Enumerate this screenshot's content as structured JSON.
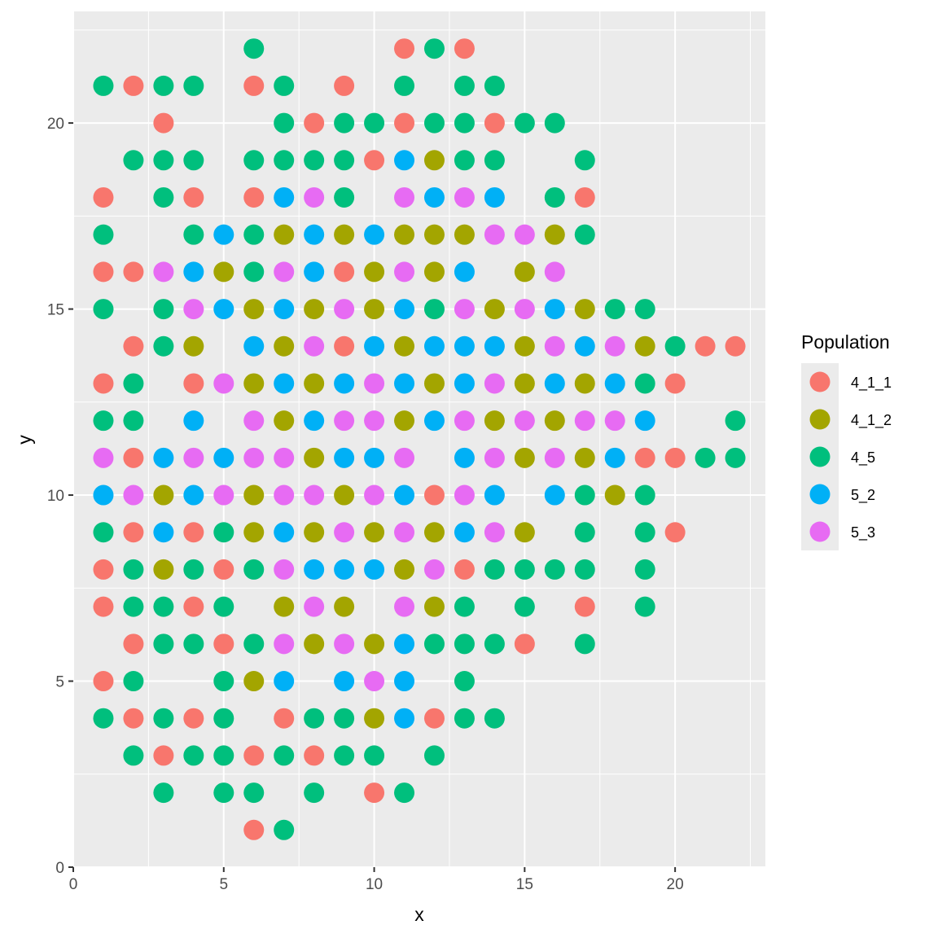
{
  "chart_data": {
    "type": "scatter",
    "title": "",
    "xlabel": "x",
    "ylabel": "y",
    "xlim": [
      0,
      23
    ],
    "ylim": [
      0,
      23
    ],
    "x_ticks": [
      0,
      5,
      10,
      15,
      20
    ],
    "y_ticks": [
      0,
      5,
      10,
      15,
      20
    ],
    "x_tick_labels": [
      "0",
      "5",
      "10",
      "15",
      "20"
    ],
    "y_tick_labels": [
      "0",
      "5",
      "10",
      "15",
      "20"
    ],
    "grid": true,
    "legend": {
      "title": "Population",
      "position": "right",
      "entries": [
        {
          "label": "4_1_1",
          "color": "#F8766D"
        },
        {
          "label": "4_1_2",
          "color": "#A3A500"
        },
        {
          "label": "4_5",
          "color": "#00BF7D"
        },
        {
          "label": "5_2",
          "color": "#00B0F6"
        },
        {
          "label": "5_3",
          "color": "#E76BF3"
        }
      ]
    },
    "series": [
      {
        "name": "4_1_1",
        "color": "#F8766D",
        "points": [
          [
            11,
            22
          ],
          [
            13,
            22
          ],
          [
            2,
            21
          ],
          [
            6,
            21
          ],
          [
            9,
            21
          ],
          [
            3,
            20
          ],
          [
            8,
            20
          ],
          [
            11,
            20
          ],
          [
            14,
            20
          ],
          [
            10,
            19
          ],
          [
            1,
            18
          ],
          [
            4,
            18
          ],
          [
            6,
            18
          ],
          [
            17,
            18
          ],
          [
            1,
            16
          ],
          [
            2,
            16
          ],
          [
            9,
            16
          ],
          [
            2,
            14
          ],
          [
            9,
            14
          ],
          [
            21,
            14
          ],
          [
            22,
            14
          ],
          [
            1,
            13
          ],
          [
            4,
            13
          ],
          [
            20,
            13
          ],
          [
            2,
            11
          ],
          [
            19,
            11
          ],
          [
            20,
            11
          ],
          [
            12,
            10
          ],
          [
            2,
            9
          ],
          [
            4,
            9
          ],
          [
            20,
            9
          ],
          [
            1,
            8
          ],
          [
            5,
            8
          ],
          [
            13,
            8
          ],
          [
            1,
            7
          ],
          [
            4,
            7
          ],
          [
            17,
            7
          ],
          [
            2,
            6
          ],
          [
            5,
            6
          ],
          [
            15,
            6
          ],
          [
            1,
            5
          ],
          [
            2,
            4
          ],
          [
            4,
            4
          ],
          [
            7,
            4
          ],
          [
            12,
            4
          ],
          [
            3,
            3
          ],
          [
            6,
            3
          ],
          [
            8,
            3
          ],
          [
            10,
            2
          ],
          [
            6,
            1
          ]
        ]
      },
      {
        "name": "4_1_2",
        "color": "#A3A500",
        "points": [
          [
            12,
            19
          ],
          [
            7,
            17
          ],
          [
            9,
            17
          ],
          [
            11,
            17
          ],
          [
            12,
            17
          ],
          [
            13,
            17
          ],
          [
            16,
            17
          ],
          [
            5,
            16
          ],
          [
            10,
            16
          ],
          [
            12,
            16
          ],
          [
            15,
            16
          ],
          [
            6,
            15
          ],
          [
            8,
            15
          ],
          [
            10,
            15
          ],
          [
            14,
            15
          ],
          [
            17,
            15
          ],
          [
            4,
            14
          ],
          [
            7,
            14
          ],
          [
            11,
            14
          ],
          [
            15,
            14
          ],
          [
            19,
            14
          ],
          [
            6,
            13
          ],
          [
            8,
            13
          ],
          [
            12,
            13
          ],
          [
            15,
            13
          ],
          [
            17,
            13
          ],
          [
            7,
            12
          ],
          [
            11,
            12
          ],
          [
            14,
            12
          ],
          [
            16,
            12
          ],
          [
            8,
            11
          ],
          [
            15,
            11
          ],
          [
            17,
            11
          ],
          [
            3,
            10
          ],
          [
            6,
            10
          ],
          [
            9,
            10
          ],
          [
            18,
            10
          ],
          [
            6,
            9
          ],
          [
            8,
            9
          ],
          [
            10,
            9
          ],
          [
            12,
            9
          ],
          [
            15,
            9
          ],
          [
            3,
            8
          ],
          [
            11,
            8
          ],
          [
            7,
            7
          ],
          [
            9,
            7
          ],
          [
            12,
            7
          ],
          [
            8,
            6
          ],
          [
            10,
            6
          ],
          [
            6,
            5
          ],
          [
            10,
            4
          ]
        ]
      },
      {
        "name": "4_5",
        "color": "#00BF7D",
        "points": [
          [
            6,
            22
          ],
          [
            12,
            22
          ],
          [
            1,
            21
          ],
          [
            3,
            21
          ],
          [
            4,
            21
          ],
          [
            7,
            21
          ],
          [
            11,
            21
          ],
          [
            13,
            21
          ],
          [
            14,
            21
          ],
          [
            7,
            20
          ],
          [
            9,
            20
          ],
          [
            10,
            20
          ],
          [
            12,
            20
          ],
          [
            13,
            20
          ],
          [
            15,
            20
          ],
          [
            16,
            20
          ],
          [
            2,
            19
          ],
          [
            3,
            19
          ],
          [
            4,
            19
          ],
          [
            6,
            19
          ],
          [
            7,
            19
          ],
          [
            8,
            19
          ],
          [
            9,
            19
          ],
          [
            13,
            19
          ],
          [
            14,
            19
          ],
          [
            17,
            19
          ],
          [
            3,
            18
          ],
          [
            9,
            18
          ],
          [
            16,
            18
          ],
          [
            1,
            17
          ],
          [
            4,
            17
          ],
          [
            6,
            17
          ],
          [
            17,
            17
          ],
          [
            6,
            16
          ],
          [
            1,
            15
          ],
          [
            3,
            15
          ],
          [
            12,
            15
          ],
          [
            18,
            15
          ],
          [
            19,
            15
          ],
          [
            3,
            14
          ],
          [
            20,
            14
          ],
          [
            2,
            13
          ],
          [
            19,
            13
          ],
          [
            1,
            12
          ],
          [
            2,
            12
          ],
          [
            22,
            12
          ],
          [
            21,
            11
          ],
          [
            22,
            11
          ],
          [
            17,
            10
          ],
          [
            19,
            10
          ],
          [
            1,
            9
          ],
          [
            5,
            9
          ],
          [
            17,
            9
          ],
          [
            19,
            9
          ],
          [
            2,
            8
          ],
          [
            4,
            8
          ],
          [
            6,
            8
          ],
          [
            14,
            8
          ],
          [
            15,
            8
          ],
          [
            16,
            8
          ],
          [
            17,
            8
          ],
          [
            19,
            8
          ],
          [
            2,
            7
          ],
          [
            3,
            7
          ],
          [
            5,
            7
          ],
          [
            13,
            7
          ],
          [
            15,
            7
          ],
          [
            19,
            7
          ],
          [
            3,
            6
          ],
          [
            4,
            6
          ],
          [
            6,
            6
          ],
          [
            12,
            6
          ],
          [
            13,
            6
          ],
          [
            14,
            6
          ],
          [
            17,
            6
          ],
          [
            2,
            5
          ],
          [
            5,
            5
          ],
          [
            13,
            5
          ],
          [
            1,
            4
          ],
          [
            3,
            4
          ],
          [
            5,
            4
          ],
          [
            8,
            4
          ],
          [
            9,
            4
          ],
          [
            13,
            4
          ],
          [
            14,
            4
          ],
          [
            2,
            3
          ],
          [
            4,
            3
          ],
          [
            5,
            3
          ],
          [
            7,
            3
          ],
          [
            9,
            3
          ],
          [
            10,
            3
          ],
          [
            12,
            3
          ],
          [
            3,
            2
          ],
          [
            5,
            2
          ],
          [
            6,
            2
          ],
          [
            8,
            2
          ],
          [
            11,
            2
          ],
          [
            7,
            1
          ]
        ]
      },
      {
        "name": "5_2",
        "color": "#00B0F6",
        "points": [
          [
            11,
            19
          ],
          [
            7,
            18
          ],
          [
            12,
            18
          ],
          [
            14,
            18
          ],
          [
            5,
            17
          ],
          [
            8,
            17
          ],
          [
            10,
            17
          ],
          [
            4,
            16
          ],
          [
            8,
            16
          ],
          [
            13,
            16
          ],
          [
            5,
            15
          ],
          [
            7,
            15
          ],
          [
            11,
            15
          ],
          [
            16,
            15
          ],
          [
            6,
            14
          ],
          [
            10,
            14
          ],
          [
            12,
            14
          ],
          [
            13,
            14
          ],
          [
            14,
            14
          ],
          [
            17,
            14
          ],
          [
            7,
            13
          ],
          [
            9,
            13
          ],
          [
            11,
            13
          ],
          [
            13,
            13
          ],
          [
            16,
            13
          ],
          [
            18,
            13
          ],
          [
            4,
            12
          ],
          [
            8,
            12
          ],
          [
            12,
            12
          ],
          [
            19,
            12
          ],
          [
            3,
            11
          ],
          [
            5,
            11
          ],
          [
            9,
            11
          ],
          [
            10,
            11
          ],
          [
            13,
            11
          ],
          [
            18,
            11
          ],
          [
            1,
            10
          ],
          [
            4,
            10
          ],
          [
            11,
            10
          ],
          [
            14,
            10
          ],
          [
            16,
            10
          ],
          [
            3,
            9
          ],
          [
            7,
            9
          ],
          [
            13,
            9
          ],
          [
            8,
            8
          ],
          [
            9,
            8
          ],
          [
            10,
            8
          ],
          [
            11,
            6
          ],
          [
            7,
            5
          ],
          [
            9,
            5
          ],
          [
            11,
            5
          ],
          [
            11,
            4
          ]
        ]
      },
      {
        "name": "5_3",
        "color": "#E76BF3",
        "points": [
          [
            8,
            18
          ],
          [
            11,
            18
          ],
          [
            13,
            18
          ],
          [
            14,
            17
          ],
          [
            15,
            17
          ],
          [
            3,
            16
          ],
          [
            7,
            16
          ],
          [
            11,
            16
          ],
          [
            16,
            16
          ],
          [
            4,
            15
          ],
          [
            9,
            15
          ],
          [
            13,
            15
          ],
          [
            15,
            15
          ],
          [
            8,
            14
          ],
          [
            16,
            14
          ],
          [
            18,
            14
          ],
          [
            5,
            13
          ],
          [
            10,
            13
          ],
          [
            14,
            13
          ],
          [
            6,
            12
          ],
          [
            9,
            12
          ],
          [
            10,
            12
          ],
          [
            13,
            12
          ],
          [
            15,
            12
          ],
          [
            17,
            12
          ],
          [
            18,
            12
          ],
          [
            1,
            11
          ],
          [
            4,
            11
          ],
          [
            6,
            11
          ],
          [
            7,
            11
          ],
          [
            11,
            11
          ],
          [
            14,
            11
          ],
          [
            16,
            11
          ],
          [
            2,
            10
          ],
          [
            5,
            10
          ],
          [
            7,
            10
          ],
          [
            8,
            10
          ],
          [
            10,
            10
          ],
          [
            13,
            10
          ],
          [
            9,
            9
          ],
          [
            11,
            9
          ],
          [
            14,
            9
          ],
          [
            7,
            8
          ],
          [
            12,
            8
          ],
          [
            8,
            7
          ],
          [
            11,
            7
          ],
          [
            7,
            6
          ],
          [
            9,
            6
          ],
          [
            10,
            5
          ]
        ]
      }
    ]
  }
}
